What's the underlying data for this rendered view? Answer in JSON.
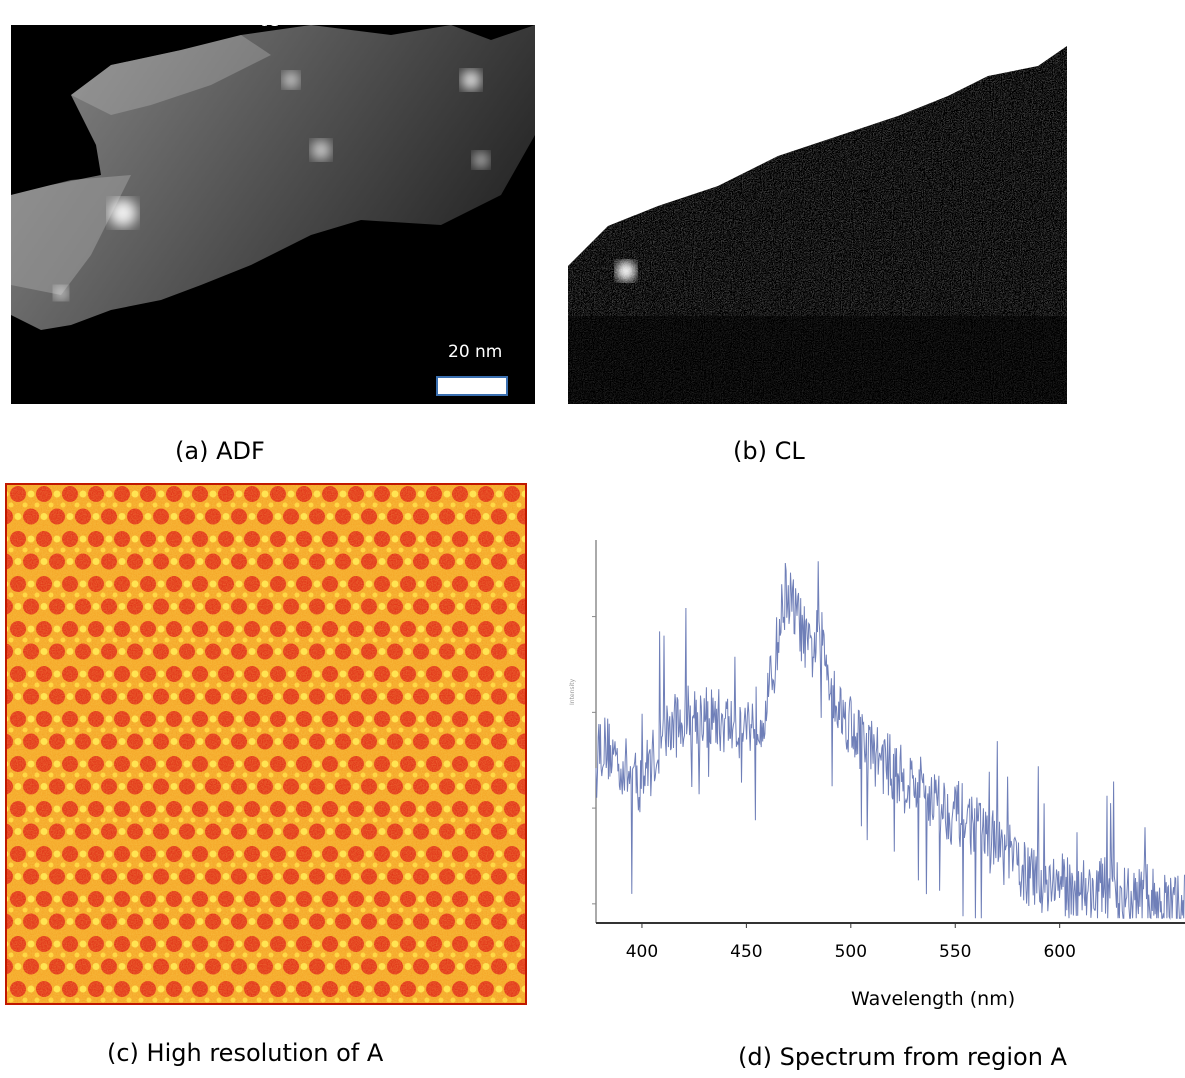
{
  "panels": {
    "a": {
      "caption": "(a) ADF",
      "region_marker": "A",
      "scale_bar": "20 nm"
    },
    "b": {
      "caption": "(b)  CL"
    },
    "c": {
      "caption": "(c) High resolution of A"
    },
    "d": {
      "caption": "(d) Spectrum from region A"
    }
  },
  "chart_data": {
    "type": "line",
    "title": "",
    "xlabel": "Wavelength (nm)",
    "ylabel": "Intensity",
    "x_ticks": [
      400,
      450,
      500,
      550,
      600
    ],
    "xlim": [
      378,
      660
    ],
    "ylim": [
      480,
      880
    ],
    "series": [
      {
        "color": "#6f7fb8",
        "x": [
          378,
          385,
          392,
          398,
          405,
          412,
          418,
          425,
          432,
          438,
          445,
          452,
          458,
          462,
          466,
          469,
          472,
          476,
          480,
          485,
          490,
          495,
          500,
          505,
          510,
          515,
          520,
          525,
          530,
          535,
          540,
          545,
          550,
          555,
          560,
          565,
          570,
          575,
          580,
          585,
          590,
          595,
          600,
          605,
          610,
          615,
          620,
          625,
          630,
          635,
          640,
          645,
          650,
          655,
          660
        ],
        "y": [
          670,
          660,
          640,
          625,
          650,
          680,
          690,
          700,
          695,
          690,
          685,
          690,
          700,
          730,
          790,
          830,
          810,
          790,
          760,
          780,
          740,
          700,
          690,
          670,
          660,
          650,
          640,
          630,
          625,
          620,
          610,
          600,
          595,
          590,
          580,
          570,
          560,
          550,
          540,
          530,
          520,
          525,
          520,
          515,
          520,
          510,
          515,
          520,
          505,
          500,
          510,
          505,
          500,
          495,
          500
        ]
      }
    ]
  }
}
